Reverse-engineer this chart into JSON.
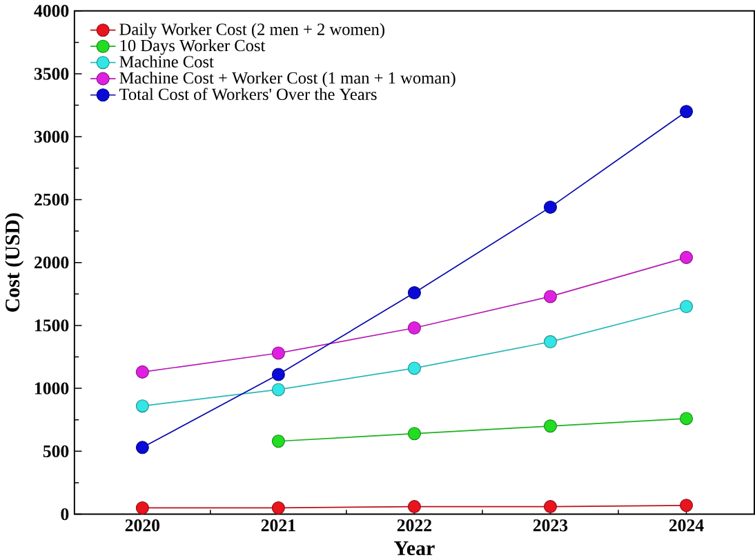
{
  "chart_data": {
    "type": "line",
    "xlabel": "Year",
    "ylabel": "Cost (USD)",
    "x": [
      2020,
      2021,
      2022,
      2023,
      2024
    ],
    "xlim": [
      2019.5,
      2024.5
    ],
    "xticks": [
      2020,
      2021,
      2022,
      2023,
      2024
    ],
    "ylim": [
      0,
      4000
    ],
    "yticks": [
      0,
      500,
      1000,
      1500,
      2000,
      2500,
      3000,
      3500,
      4000
    ],
    "marker": "circle",
    "legend": "top left",
    "grid": false,
    "series": [
      {
        "name": "Daily Worker Cost (2 men + 2 women)",
        "color": "#e8141e",
        "values": [
          50,
          50,
          60,
          60,
          70
        ]
      },
      {
        "name": "10 Days Worker Cost",
        "color": "#22dd22",
        "values": [
          null,
          580,
          640,
          700,
          760
        ]
      },
      {
        "name": "Machine Cost",
        "color": "#33e5e5",
        "values": [
          860,
          990,
          1160,
          1370,
          1650
        ]
      },
      {
        "name": "Machine Cost + Worker Cost (1 man + 1 woman)",
        "color": "#e020e0",
        "values": [
          1130,
          1280,
          1480,
          1730,
          2040
        ]
      },
      {
        "name": "Total Cost of Workers' Over the Years",
        "color": "#0a0ad8",
        "values": [
          530,
          1110,
          1760,
          2440,
          3200
        ]
      }
    ]
  }
}
